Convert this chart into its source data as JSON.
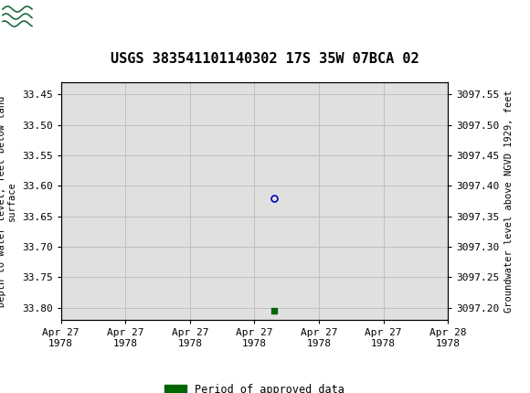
{
  "title": "USGS 383541101140302 17S 35W 07BCA 02",
  "title_fontsize": 11,
  "header_color": "#1a6b3c",
  "plot_bg_color": "#e0e0e0",
  "fig_bg_color": "#ffffff",
  "ylabel_left": "Depth to water level, feet below land\nsurface",
  "ylabel_right": "Groundwater level above NGVD 1929, feet",
  "ylim_left": [
    33.82,
    33.43
  ],
  "ylim_right": [
    3097.18,
    3097.57
  ],
  "yticks_left": [
    33.45,
    33.5,
    33.55,
    33.6,
    33.65,
    33.7,
    33.75,
    33.8
  ],
  "yticks_right": [
    3097.2,
    3097.25,
    3097.3,
    3097.35,
    3097.4,
    3097.45,
    3097.5,
    3097.55
  ],
  "xlim": [
    0,
    6
  ],
  "xtick_labels": [
    "Apr 27\n1978",
    "Apr 27\n1978",
    "Apr 27\n1978",
    "Apr 27\n1978",
    "Apr 27\n1978",
    "Apr 27\n1978",
    "Apr 28\n1978"
  ],
  "xtick_positions": [
    0,
    1,
    2,
    3,
    4,
    5,
    6
  ],
  "grid_color": "#c0c0c0",
  "circle_point_x": 3.3,
  "circle_point_y": 33.62,
  "circle_color": "#0000bb",
  "square_point_x": 3.3,
  "square_point_y": 33.805,
  "square_color": "#006600",
  "legend_label": "Period of approved data",
  "legend_color": "#006600",
  "font_family": "DejaVu Sans Mono",
  "tick_fontsize": 8,
  "label_fontsize": 7.5
}
